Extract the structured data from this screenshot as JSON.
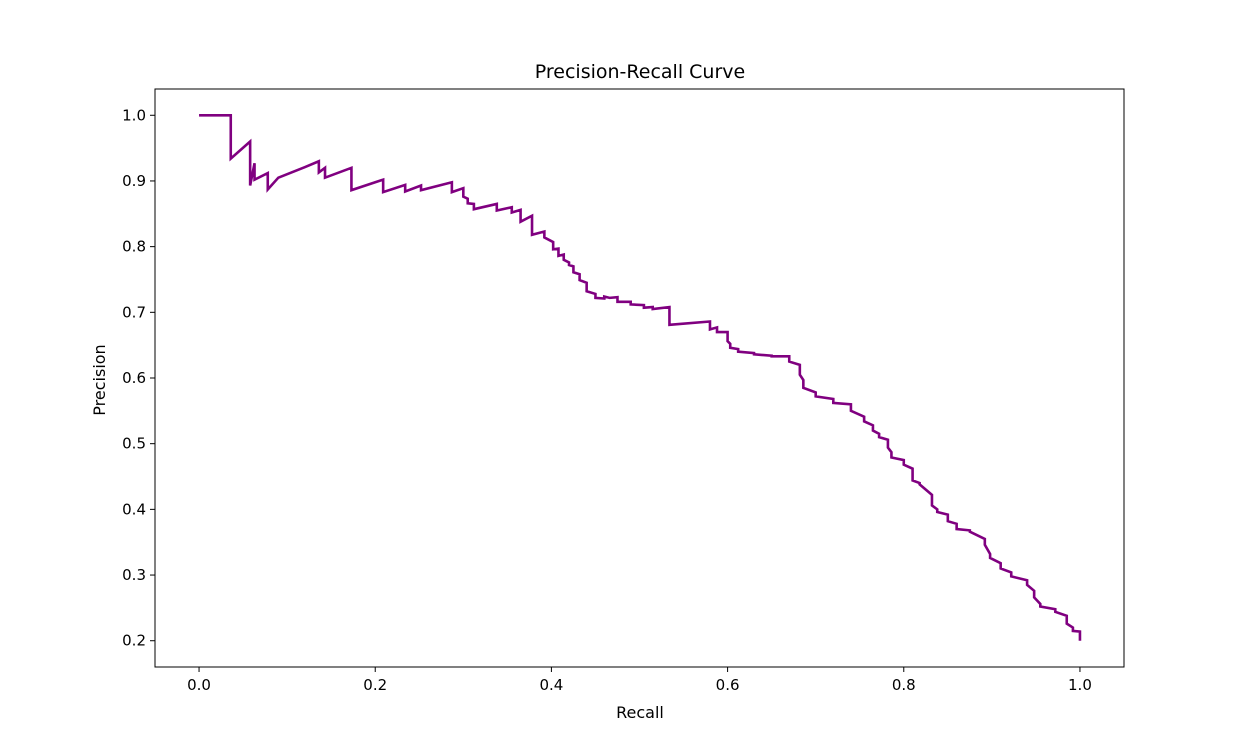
{
  "chart_data": {
    "type": "line",
    "title": "Precision-Recall Curve",
    "xlabel": "Recall",
    "ylabel": "Precision",
    "xlim": [
      -0.05,
      1.05
    ],
    "ylim": [
      0.16,
      1.04
    ],
    "x_ticks": [
      0.0,
      0.2,
      0.4,
      0.6,
      0.8,
      1.0
    ],
    "x_tick_labels": [
      "0.0",
      "0.2",
      "0.4",
      "0.6",
      "0.8",
      "1.0"
    ],
    "y_ticks": [
      0.2,
      0.3,
      0.4,
      0.5,
      0.6,
      0.7,
      0.8,
      0.9,
      1.0
    ],
    "y_tick_labels": [
      "0.2",
      "0.3",
      "0.4",
      "0.5",
      "0.6",
      "0.7",
      "0.8",
      "0.9",
      "1.0"
    ],
    "grid": false,
    "series": [
      {
        "color": "#800080",
        "x": [
          0.0,
          0.036,
          0.036,
          0.058,
          0.058,
          0.063,
          0.063,
          0.078,
          0.078,
          0.09,
          0.12,
          0.136,
          0.136,
          0.143,
          0.143,
          0.173,
          0.173,
          0.209,
          0.209,
          0.234,
          0.234,
          0.252,
          0.252,
          0.287,
          0.287,
          0.3,
          0.3,
          0.305,
          0.305,
          0.312,
          0.312,
          0.338,
          0.338,
          0.355,
          0.355,
          0.365,
          0.365,
          0.378,
          0.378,
          0.392,
          0.392,
          0.402,
          0.402,
          0.408,
          0.408,
          0.414,
          0.414,
          0.42,
          0.42,
          0.425,
          0.425,
          0.432,
          0.432,
          0.44,
          0.44,
          0.45,
          0.45,
          0.46,
          0.46,
          0.466,
          0.466,
          0.475,
          0.475,
          0.49,
          0.49,
          0.505,
          0.505,
          0.515,
          0.515,
          0.534,
          0.534,
          0.58,
          0.58,
          0.588,
          0.588,
          0.6,
          0.6,
          0.603,
          0.603,
          0.612,
          0.612,
          0.63,
          0.63,
          0.65,
          0.65,
          0.67,
          0.67,
          0.682,
          0.682,
          0.686,
          0.686,
          0.7,
          0.7,
          0.72,
          0.72,
          0.74,
          0.74,
          0.755,
          0.755,
          0.765,
          0.765,
          0.772,
          0.772,
          0.782,
          0.782,
          0.786,
          0.786,
          0.8,
          0.8,
          0.81,
          0.81,
          0.818,
          0.818,
          0.832,
          0.832,
          0.838,
          0.838,
          0.85,
          0.85,
          0.86,
          0.86,
          0.875,
          0.875,
          0.892,
          0.892,
          0.898,
          0.898,
          0.91,
          0.91,
          0.922,
          0.922,
          0.94,
          0.94,
          0.948,
          0.948,
          0.955,
          0.955,
          0.972,
          0.972,
          0.985,
          0.985,
          0.992,
          0.992,
          1.0,
          1.0
        ],
        "y": [
          1.0,
          1.0,
          0.934,
          0.96,
          0.893,
          0.927,
          0.902,
          0.912,
          0.887,
          0.905,
          0.921,
          0.93,
          0.913,
          0.92,
          0.905,
          0.92,
          0.886,
          0.902,
          0.883,
          0.894,
          0.884,
          0.893,
          0.886,
          0.898,
          0.883,
          0.889,
          0.876,
          0.873,
          0.866,
          0.865,
          0.857,
          0.865,
          0.855,
          0.86,
          0.852,
          0.856,
          0.838,
          0.847,
          0.818,
          0.823,
          0.814,
          0.807,
          0.796,
          0.797,
          0.786,
          0.788,
          0.78,
          0.776,
          0.772,
          0.77,
          0.761,
          0.758,
          0.749,
          0.745,
          0.732,
          0.728,
          0.722,
          0.721,
          0.724,
          0.722,
          0.722,
          0.723,
          0.716,
          0.716,
          0.712,
          0.711,
          0.707,
          0.708,
          0.705,
          0.708,
          0.681,
          0.686,
          0.674,
          0.677,
          0.67,
          0.67,
          0.656,
          0.652,
          0.646,
          0.644,
          0.64,
          0.638,
          0.636,
          0.634,
          0.633,
          0.633,
          0.625,
          0.62,
          0.605,
          0.597,
          0.585,
          0.578,
          0.572,
          0.568,
          0.562,
          0.56,
          0.55,
          0.541,
          0.534,
          0.528,
          0.52,
          0.515,
          0.51,
          0.506,
          0.494,
          0.487,
          0.479,
          0.475,
          0.468,
          0.462,
          0.444,
          0.44,
          0.438,
          0.422,
          0.406,
          0.4,
          0.396,
          0.392,
          0.382,
          0.378,
          0.37,
          0.368,
          0.366,
          0.355,
          0.346,
          0.332,
          0.326,
          0.318,
          0.31,
          0.304,
          0.298,
          0.292,
          0.285,
          0.276,
          0.266,
          0.256,
          0.252,
          0.248,
          0.244,
          0.238,
          0.226,
          0.22,
          0.215,
          0.214,
          0.2
        ]
      }
    ]
  }
}
